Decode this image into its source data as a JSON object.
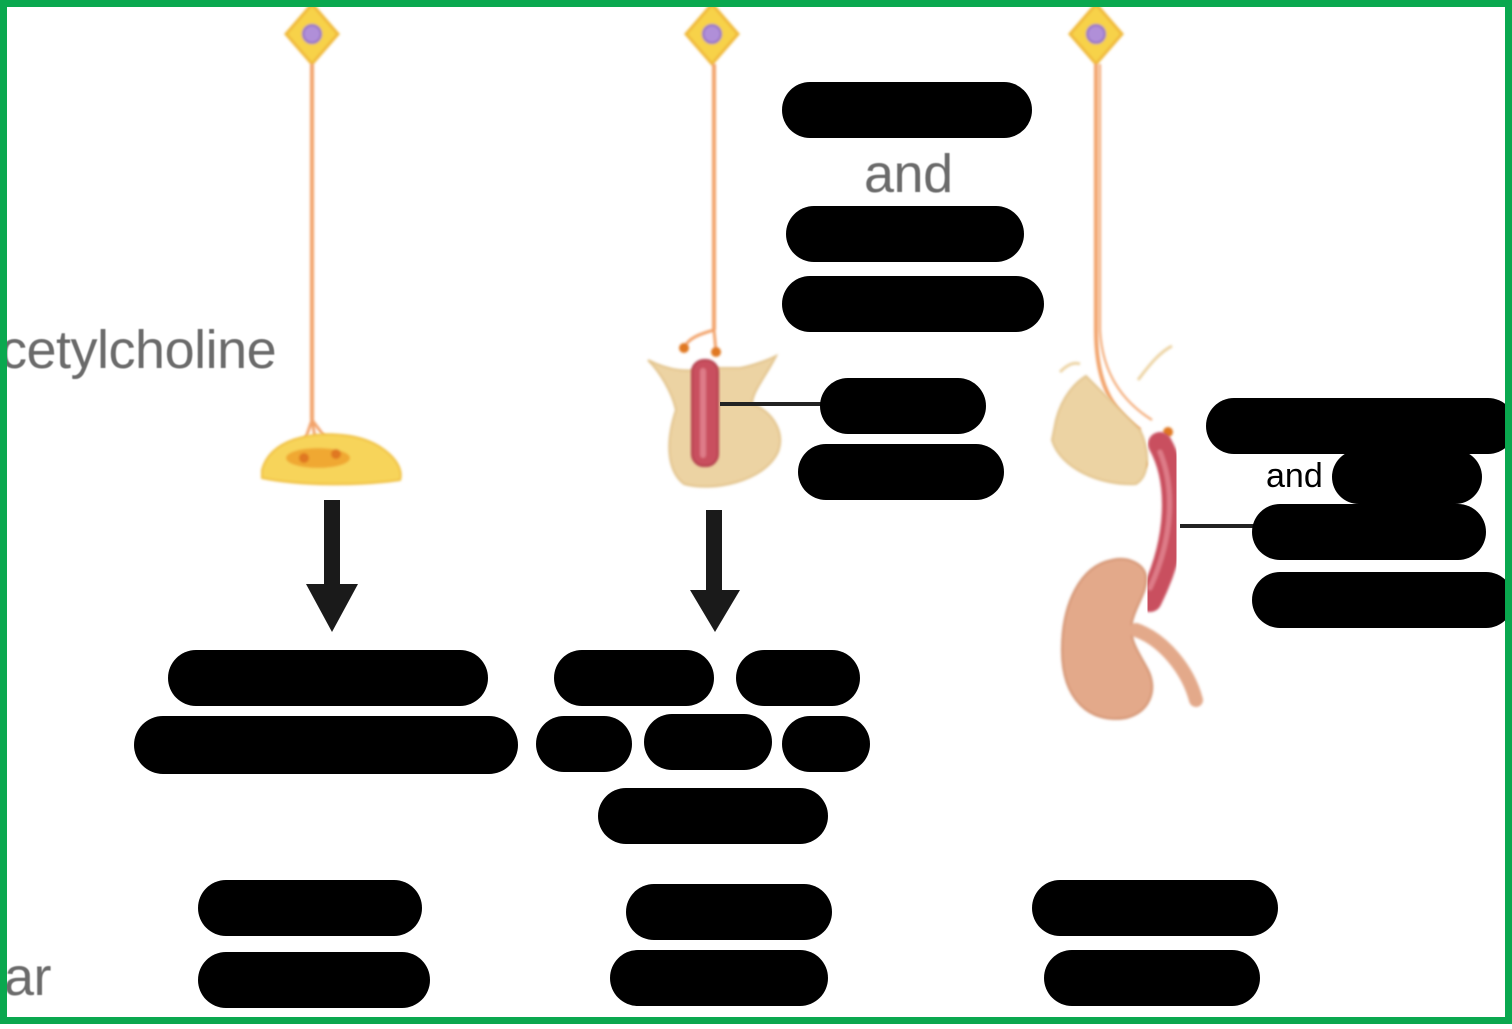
{
  "labels": {
    "acetylcholine": "cetylcholine",
    "ar": "ar",
    "and_middle": "and",
    "and_right": "and"
  },
  "colors": {
    "frame": "#0aa84f",
    "neuron_body": "#f5c542",
    "neuron_nucleus": "#b08fd8",
    "axon": "#f2a36b",
    "synapse": "#f5c542",
    "gland": "#ecd3a3",
    "vessel": "#c9505e",
    "kidney": "#e3a98a",
    "arrow": "#1a1a1a",
    "redaction": "#000000",
    "label_text": "#6b6b6b"
  },
  "icons": [
    "neuron-icon",
    "synaptic-terminal-icon",
    "gland-icon",
    "blood-vessel-icon",
    "kidney-icon",
    "down-arrow-icon"
  ]
}
